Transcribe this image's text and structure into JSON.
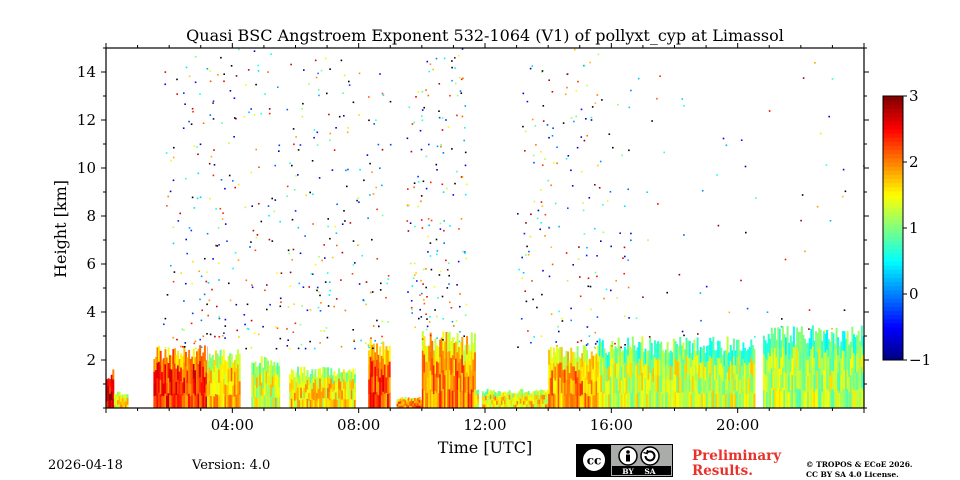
{
  "chart_data": {
    "type": "heatmap",
    "title": "Quasi BSC Angstroem Exponent 532-1064 (V1) of pollyxt_cyp at Limassol",
    "xlabel": "Time [UTC]",
    "ylabel": "Height [km]",
    "xlim_hours": [
      0,
      24
    ],
    "ylim_km": [
      0,
      15
    ],
    "xticks": [
      {
        "hour": 4,
        "label": "04:00"
      },
      {
        "hour": 8,
        "label": "08:00"
      },
      {
        "hour": 12,
        "label": "12:00"
      },
      {
        "hour": 16,
        "label": "16:00"
      },
      {
        "hour": 20,
        "label": "20:00"
      }
    ],
    "yticks": [
      {
        "km": 2,
        "label": "2"
      },
      {
        "km": 4,
        "label": "4"
      },
      {
        "km": 6,
        "label": "6"
      },
      {
        "km": 8,
        "label": "8"
      },
      {
        "km": 10,
        "label": "10"
      },
      {
        "km": 12,
        "label": "12"
      },
      {
        "km": 14,
        "label": "14"
      }
    ],
    "colorbar": {
      "range": [
        -1,
        3
      ],
      "colormap": "jet",
      "ticks": [
        {
          "value": 3,
          "label": "3"
        },
        {
          "value": 2,
          "label": "2"
        },
        {
          "value": 1,
          "label": "1"
        },
        {
          "value": 0,
          "label": "0"
        },
        {
          "value": -1,
          "label": "−1"
        }
      ]
    },
    "layers": [
      {
        "t0": 0.0,
        "t1": 0.25,
        "top_km": 1.4,
        "value": 2.6
      },
      {
        "t0": 0.25,
        "t1": 0.7,
        "top_km": 0.6,
        "value": 1.6
      },
      {
        "t0": 1.5,
        "t1": 3.2,
        "top_km": 2.3,
        "value": 2.3
      },
      {
        "t0": 3.2,
        "t1": 4.3,
        "top_km": 2.2,
        "value": 1.7
      },
      {
        "t0": 4.6,
        "t1": 5.5,
        "top_km": 1.9,
        "value": 1.4
      },
      {
        "t0": 5.8,
        "t1": 7.9,
        "top_km": 1.5,
        "value": 1.6
      },
      {
        "t0": 8.3,
        "t1": 9.0,
        "top_km": 2.5,
        "value": 2.2
      },
      {
        "t0": 9.2,
        "t1": 10.0,
        "top_km": 0.4,
        "value": 2.0
      },
      {
        "t0": 10.0,
        "t1": 11.7,
        "top_km": 2.8,
        "value": 2.0
      },
      {
        "t0": 11.7,
        "t1": 14.0,
        "top_km": 0.7,
        "value": 1.6
      },
      {
        "t0": 14.0,
        "t1": 15.6,
        "top_km": 2.3,
        "value": 1.9
      },
      {
        "t0": 15.6,
        "t1": 20.6,
        "top_km": 2.6,
        "value": 1.3
      },
      {
        "t0": 20.8,
        "t1": 24.0,
        "top_km": 3.0,
        "value": 1.2
      }
    ],
    "sparse_regions": [
      {
        "t0": 1.8,
        "t1": 9.0,
        "bottom_km": 2.5,
        "top_km": 15.0,
        "density": 0.35
      },
      {
        "t0": 9.5,
        "t1": 11.4,
        "bottom_km": 2.8,
        "top_km": 15.0,
        "density": 0.55
      },
      {
        "t0": 13.0,
        "t1": 16.6,
        "bottom_km": 2.5,
        "top_km": 15.0,
        "density": 0.3
      },
      {
        "t0": 16.6,
        "t1": 24.0,
        "bottom_km": 3.0,
        "top_km": 15.0,
        "density": 0.05
      }
    ],
    "gaps": [
      {
        "t0": 4.2,
        "t1": 4.35
      },
      {
        "t0": 5.55,
        "t1": 5.7
      },
      {
        "t0": 11.8,
        "t1": 11.9
      },
      {
        "t0": 20.55,
        "t1": 20.75
      }
    ]
  },
  "footer": {
    "date": "2026-04-18",
    "version": "Version: 4.0",
    "license_badge": "cc-by-sa-icon",
    "cc_by": "BY",
    "cc_sa": "SA",
    "preliminary_line1": "Preliminary",
    "preliminary_line2": "Results.",
    "copyright_line1": "© TROPOS & ECoE 2026.",
    "copyright_line2": "CC BY SA 4.0 License."
  }
}
